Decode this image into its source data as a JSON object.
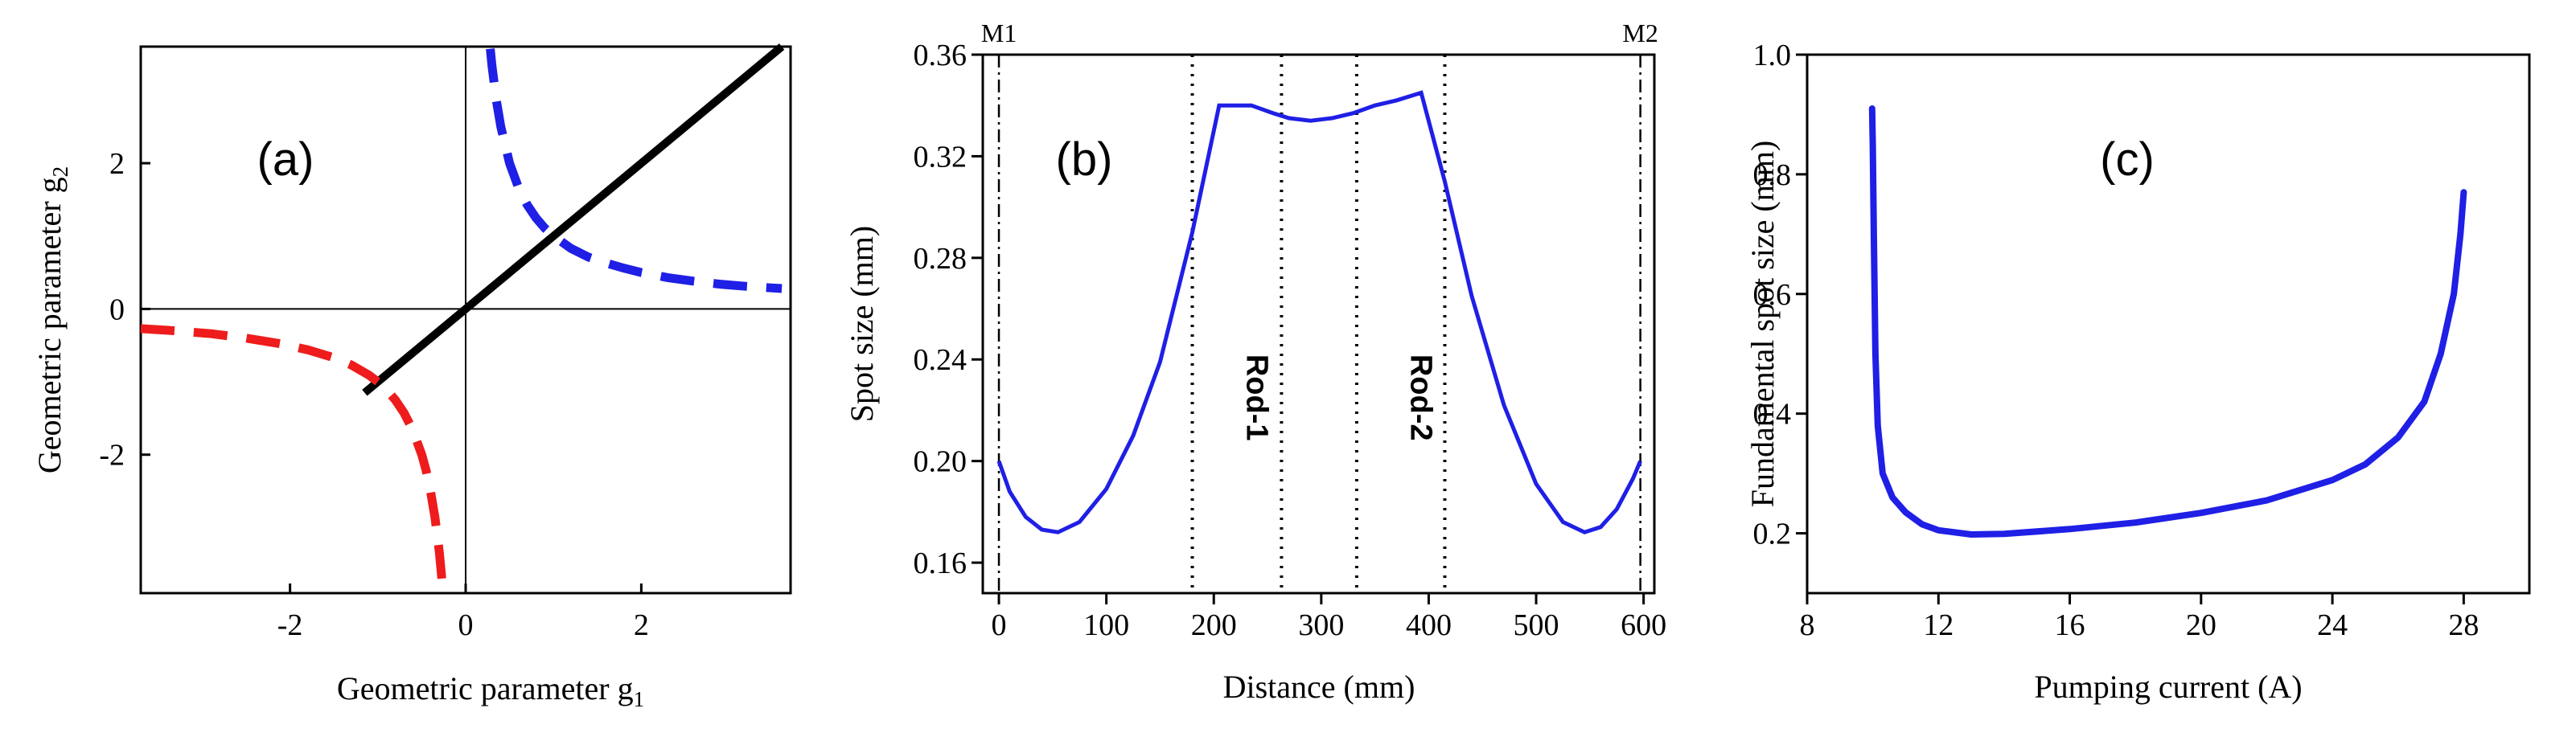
{
  "colors": {
    "blue": "#1f1fe6",
    "red": "#ee1c1c",
    "black": "#000000"
  },
  "chart_data": [
    {
      "id": "a",
      "type": "line",
      "panel_label": "(a)",
      "xlabel_main": "Geometric parameter g",
      "xlabel_sub": "1",
      "ylabel_main": "Geometric parameter g",
      "ylabel_sub": "2",
      "xlim": [
        -3.7,
        3.7
      ],
      "ylim": [
        -3.9,
        3.6
      ],
      "x_ticks": [
        -2,
        0,
        2
      ],
      "y_ticks": [
        -2,
        0,
        2
      ],
      "x_tick_labels": [
        "-2",
        "0",
        "2"
      ],
      "y_tick_labels": [
        "-2",
        "0",
        "2"
      ],
      "series": [
        {
          "name": "stability line g2 = g1",
          "style": "solid",
          "color": "#000000",
          "points": [
            [
              -1.15,
              -1.15
            ],
            [
              3.6,
              3.6
            ]
          ]
        },
        {
          "name": "boundary g1*g2 = 1 (first quadrant)",
          "style": "dashed",
          "color": "#1f1fe6",
          "points": [
            [
              0.28,
              3.57
            ],
            [
              0.3,
              3.33
            ],
            [
              0.35,
              2.86
            ],
            [
              0.4,
              2.5
            ],
            [
              0.5,
              2.0
            ],
            [
              0.6,
              1.67
            ],
            [
              0.7,
              1.43
            ],
            [
              0.8,
              1.25
            ],
            [
              0.9,
              1.11
            ],
            [
              1.0,
              1.0
            ],
            [
              1.2,
              0.83
            ],
            [
              1.4,
              0.71
            ],
            [
              1.6,
              0.63
            ],
            [
              1.8,
              0.56
            ],
            [
              2.0,
              0.5
            ],
            [
              2.3,
              0.43
            ],
            [
              2.6,
              0.38
            ],
            [
              2.9,
              0.34
            ],
            [
              3.2,
              0.31
            ],
            [
              3.6,
              0.28
            ]
          ]
        },
        {
          "name": "boundary g1*g2 = 1 (third quadrant)",
          "style": "dashed",
          "color": "#ee1c1c",
          "points": [
            [
              -3.7,
              -0.27
            ],
            [
              -3.3,
              -0.3
            ],
            [
              -2.9,
              -0.34
            ],
            [
              -2.5,
              -0.4
            ],
            [
              -2.1,
              -0.48
            ],
            [
              -1.8,
              -0.56
            ],
            [
              -1.5,
              -0.67
            ],
            [
              -1.3,
              -0.77
            ],
            [
              -1.1,
              -0.91
            ],
            [
              -1.0,
              -1.0
            ],
            [
              -0.9,
              -1.11
            ],
            [
              -0.8,
              -1.25
            ],
            [
              -0.7,
              -1.43
            ],
            [
              -0.6,
              -1.67
            ],
            [
              -0.5,
              -2.0
            ],
            [
              -0.45,
              -2.22
            ],
            [
              -0.4,
              -2.5
            ],
            [
              -0.35,
              -2.86
            ],
            [
              -0.3,
              -3.33
            ],
            [
              -0.26,
              -3.85
            ]
          ]
        }
      ]
    },
    {
      "id": "b",
      "type": "line",
      "panel_label": "(b)",
      "xlabel": "Distance (mm)",
      "ylabel": "Spot size (mm)",
      "xlim": [
        -15,
        610
      ],
      "ylim": [
        0.148,
        0.36
      ],
      "x_ticks": [
        0,
        100,
        200,
        300,
        400,
        500,
        600
      ],
      "y_ticks": [
        0.16,
        0.2,
        0.24,
        0.28,
        0.32,
        0.36
      ],
      "x_tick_labels": [
        "0",
        "100",
        "200",
        "300",
        "400",
        "500",
        "600"
      ],
      "y_tick_labels": [
        "0.16",
        "0.20",
        "0.24",
        "0.28",
        "0.32",
        "0.36"
      ],
      "markers": [
        {
          "x": 0,
          "label": "M1",
          "style": "dashdot"
        },
        {
          "x": 597,
          "label": "M2",
          "style": "dashdot"
        }
      ],
      "dotted_lines": [
        180,
        263,
        333,
        415
      ],
      "rod_labels": [
        {
          "text": "Rod-1",
          "x": 221,
          "y": 0.225
        },
        {
          "text": "Rod-2",
          "x": 374,
          "y": 0.225
        }
      ],
      "series": [
        {
          "name": "spot size",
          "color": "#1f1fe6",
          "points": [
            [
              0,
              0.2
            ],
            [
              10,
              0.188
            ],
            [
              25,
              0.178
            ],
            [
              40,
              0.173
            ],
            [
              55,
              0.172
            ],
            [
              75,
              0.176
            ],
            [
              100,
              0.189
            ],
            [
              125,
              0.21
            ],
            [
              150,
              0.239
            ],
            [
              180,
              0.29
            ],
            [
              205,
              0.34
            ],
            [
              235,
              0.34
            ],
            [
              255,
              0.337
            ],
            [
              270,
              0.335
            ],
            [
              290,
              0.334
            ],
            [
              310,
              0.335
            ],
            [
              330,
              0.337
            ],
            [
              350,
              0.34
            ],
            [
              370,
              0.342
            ],
            [
              393,
              0.345
            ],
            [
              415,
              0.31
            ],
            [
              440,
              0.265
            ],
            [
              470,
              0.222
            ],
            [
              500,
              0.191
            ],
            [
              525,
              0.176
            ],
            [
              545,
              0.172
            ],
            [
              560,
              0.174
            ],
            [
              575,
              0.181
            ],
            [
              590,
              0.193
            ],
            [
              597,
              0.2
            ]
          ]
        }
      ]
    },
    {
      "id": "c",
      "type": "line",
      "panel_label": "(c)",
      "xlabel": "Pumping current (A)",
      "ylabel": "Fundamental spot size (mm)",
      "xlim": [
        8,
        30
      ],
      "ylim": [
        0.1,
        1.0
      ],
      "x_ticks": [
        8,
        12,
        16,
        20,
        24,
        28
      ],
      "y_ticks": [
        0.2,
        0.4,
        0.6,
        0.8,
        1.0
      ],
      "x_tick_labels": [
        "8",
        "12",
        "16",
        "20",
        "24",
        "28"
      ],
      "y_tick_labels": [
        "0.2",
        "0.4",
        "0.6",
        "0.8",
        "1.0"
      ],
      "series": [
        {
          "name": "fundamental spot size",
          "color": "#1f1fe6",
          "points": [
            [
              9.98,
              0.91
            ],
            [
              10.0,
              0.85
            ],
            [
              10.03,
              0.7
            ],
            [
              10.08,
              0.5
            ],
            [
              10.15,
              0.38
            ],
            [
              10.3,
              0.3
            ],
            [
              10.6,
              0.26
            ],
            [
              11.0,
              0.235
            ],
            [
              11.5,
              0.215
            ],
            [
              12.0,
              0.205
            ],
            [
              13.0,
              0.198
            ],
            [
              14.0,
              0.199
            ],
            [
              16.0,
              0.207
            ],
            [
              18.0,
              0.218
            ],
            [
              20.0,
              0.234
            ],
            [
              22.0,
              0.255
            ],
            [
              24.0,
              0.289
            ],
            [
              25.0,
              0.315
            ],
            [
              26.0,
              0.36
            ],
            [
              26.8,
              0.42
            ],
            [
              27.3,
              0.5
            ],
            [
              27.7,
              0.6
            ],
            [
              27.9,
              0.7
            ],
            [
              28.0,
              0.77
            ]
          ]
        }
      ]
    }
  ]
}
